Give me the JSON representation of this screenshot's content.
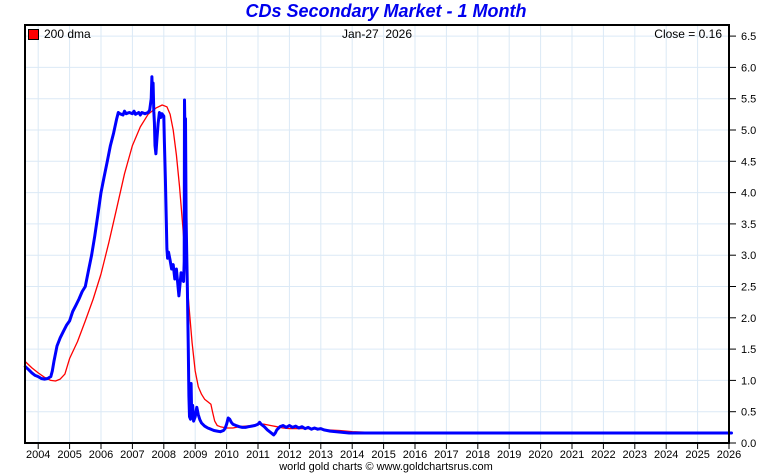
{
  "header": {
    "title": "CDs Secondary Market - 1 Month",
    "date_label": "Jan-27  2026",
    "close_label": "Close = 0.16"
  },
  "legend": {
    "items": [
      {
        "label": "200 dma",
        "color": "#ff0000"
      }
    ]
  },
  "footer": {
    "credit": "world gold charts © www.goldchartsrus.com"
  },
  "colors": {
    "title": "#0000ee",
    "grid": "#dbe9f6",
    "border": "#000000",
    "main_series": "#0000ff",
    "dma_series": "#ff0000"
  },
  "chart_data": {
    "type": "line",
    "title": "CDs Secondary Market - 1 Month",
    "xlabel": "",
    "ylabel": "",
    "grid": true,
    "legend_position": "top-left",
    "close": 0.16,
    "x_axis": {
      "range": [
        2003.59,
        2026.08
      ],
      "ticks": [
        2004,
        2005,
        2006,
        2007,
        2008,
        2009,
        2010,
        2011,
        2012,
        2013,
        2014,
        2015,
        2016,
        2017,
        2018,
        2019,
        2020,
        2021,
        2022,
        2023,
        2024,
        2025,
        2026
      ]
    },
    "y_axis": {
      "range": [
        0.0,
        6.5
      ],
      "side": "right",
      "ticks": [
        0.0,
        0.5,
        1.0,
        1.5,
        2.0,
        2.5,
        3.0,
        3.5,
        4.0,
        4.5,
        5.0,
        5.5,
        6.0,
        6.5
      ]
    },
    "series": [
      {
        "name": "200 dma",
        "color": "#ff0000",
        "width": 1.3,
        "points": [
          [
            2003.59,
            1.3
          ],
          [
            2003.8,
            1.2
          ],
          [
            2004.0,
            1.12
          ],
          [
            2004.2,
            1.05
          ],
          [
            2004.4,
            1.0
          ],
          [
            2004.55,
            0.99
          ],
          [
            2004.7,
            1.02
          ],
          [
            2004.85,
            1.1
          ],
          [
            2005.0,
            1.35
          ],
          [
            2005.25,
            1.62
          ],
          [
            2005.5,
            1.95
          ],
          [
            2005.75,
            2.3
          ],
          [
            2006.0,
            2.7
          ],
          [
            2006.25,
            3.2
          ],
          [
            2006.5,
            3.75
          ],
          [
            2006.75,
            4.3
          ],
          [
            2007.0,
            4.75
          ],
          [
            2007.25,
            5.05
          ],
          [
            2007.5,
            5.25
          ],
          [
            2007.75,
            5.35
          ],
          [
            2007.95,
            5.4
          ],
          [
            2008.1,
            5.37
          ],
          [
            2008.2,
            5.25
          ],
          [
            2008.3,
            5.0
          ],
          [
            2008.4,
            4.6
          ],
          [
            2008.5,
            4.1
          ],
          [
            2008.6,
            3.5
          ],
          [
            2008.7,
            2.85
          ],
          [
            2008.8,
            2.2
          ],
          [
            2008.9,
            1.6
          ],
          [
            2009.0,
            1.15
          ],
          [
            2009.1,
            0.9
          ],
          [
            2009.2,
            0.78
          ],
          [
            2009.3,
            0.7
          ],
          [
            2009.4,
            0.66
          ],
          [
            2009.5,
            0.62
          ],
          [
            2009.55,
            0.5
          ],
          [
            2009.62,
            0.35
          ],
          [
            2009.7,
            0.28
          ],
          [
            2009.8,
            0.26
          ],
          [
            2010.0,
            0.24
          ],
          [
            2010.2,
            0.24
          ],
          [
            2010.4,
            0.26
          ],
          [
            2010.6,
            0.27
          ],
          [
            2010.8,
            0.28
          ],
          [
            2011.0,
            0.3
          ],
          [
            2011.2,
            0.3
          ],
          [
            2011.4,
            0.28
          ],
          [
            2011.6,
            0.26
          ],
          [
            2011.8,
            0.24
          ],
          [
            2012.0,
            0.23
          ],
          [
            2012.3,
            0.23
          ],
          [
            2012.6,
            0.23
          ],
          [
            2012.9,
            0.22
          ],
          [
            2013.2,
            0.21
          ],
          [
            2013.6,
            0.2
          ],
          [
            2014.0,
            0.18
          ],
          [
            2014.6,
            0.17
          ],
          [
            2015.4,
            0.17
          ],
          [
            2016.0,
            0.16
          ],
          [
            2026.08,
            0.16
          ]
        ]
      },
      {
        "name": "CDs 1 Month",
        "color": "#0000ff",
        "width": 3,
        "points": [
          [
            2003.59,
            1.22
          ],
          [
            2003.7,
            1.17
          ],
          [
            2003.8,
            1.12
          ],
          [
            2003.9,
            1.08
          ],
          [
            2004.0,
            1.06
          ],
          [
            2004.1,
            1.03
          ],
          [
            2004.2,
            1.02
          ],
          [
            2004.3,
            1.03
          ],
          [
            2004.4,
            1.06
          ],
          [
            2004.45,
            1.15
          ],
          [
            2004.5,
            1.3
          ],
          [
            2004.6,
            1.55
          ],
          [
            2004.7,
            1.68
          ],
          [
            2004.8,
            1.78
          ],
          [
            2004.9,
            1.88
          ],
          [
            2005.0,
            1.95
          ],
          [
            2005.1,
            2.1
          ],
          [
            2005.2,
            2.2
          ],
          [
            2005.3,
            2.3
          ],
          [
            2005.4,
            2.42
          ],
          [
            2005.5,
            2.5
          ],
          [
            2005.6,
            2.75
          ],
          [
            2005.7,
            3.0
          ],
          [
            2005.8,
            3.3
          ],
          [
            2005.9,
            3.65
          ],
          [
            2006.0,
            4.0
          ],
          [
            2006.1,
            4.25
          ],
          [
            2006.2,
            4.5
          ],
          [
            2006.3,
            4.75
          ],
          [
            2006.4,
            4.95
          ],
          [
            2006.5,
            5.18
          ],
          [
            2006.55,
            5.28
          ],
          [
            2006.6,
            5.26
          ],
          [
            2006.7,
            5.24
          ],
          [
            2006.75,
            5.3
          ],
          [
            2006.8,
            5.26
          ],
          [
            2006.9,
            5.28
          ],
          [
            2007.0,
            5.26
          ],
          [
            2007.05,
            5.3
          ],
          [
            2007.1,
            5.25
          ],
          [
            2007.2,
            5.28
          ],
          [
            2007.25,
            5.24
          ],
          [
            2007.3,
            5.28
          ],
          [
            2007.4,
            5.26
          ],
          [
            2007.5,
            5.28
          ],
          [
            2007.55,
            5.32
          ],
          [
            2007.6,
            5.5
          ],
          [
            2007.62,
            5.85
          ],
          [
            2007.64,
            5.55
          ],
          [
            2007.66,
            5.75
          ],
          [
            2007.68,
            5.3
          ],
          [
            2007.7,
            5.12
          ],
          [
            2007.72,
            4.75
          ],
          [
            2007.75,
            4.62
          ],
          [
            2007.78,
            4.85
          ],
          [
            2007.82,
            5.1
          ],
          [
            2007.86,
            5.28
          ],
          [
            2007.9,
            5.2
          ],
          [
            2007.94,
            5.26
          ],
          [
            2008.0,
            5.22
          ],
          [
            2008.02,
            4.8
          ],
          [
            2008.05,
            4.2
          ],
          [
            2008.08,
            3.55
          ],
          [
            2008.1,
            3.1
          ],
          [
            2008.12,
            2.95
          ],
          [
            2008.15,
            3.05
          ],
          [
            2008.2,
            2.92
          ],
          [
            2008.25,
            2.78
          ],
          [
            2008.3,
            2.85
          ],
          [
            2008.35,
            2.62
          ],
          [
            2008.4,
            2.78
          ],
          [
            2008.45,
            2.52
          ],
          [
            2008.48,
            2.35
          ],
          [
            2008.52,
            2.55
          ],
          [
            2008.55,
            2.72
          ],
          [
            2008.58,
            2.6
          ],
          [
            2008.6,
            2.65
          ],
          [
            2008.63,
            2.58
          ],
          [
            2008.65,
            2.9
          ],
          [
            2008.66,
            5.48
          ],
          [
            2008.68,
            4.7
          ],
          [
            2008.69,
            5.18
          ],
          [
            2008.71,
            3.6
          ],
          [
            2008.73,
            3.05
          ],
          [
            2008.75,
            2.45
          ],
          [
            2008.78,
            1.5
          ],
          [
            2008.8,
            0.75
          ],
          [
            2008.82,
            0.42
          ],
          [
            2008.85,
            0.38
          ],
          [
            2008.87,
            0.95
          ],
          [
            2008.89,
            0.42
          ],
          [
            2008.92,
            0.6
          ],
          [
            2008.95,
            0.35
          ],
          [
            2009.0,
            0.42
          ],
          [
            2009.05,
            0.57
          ],
          [
            2009.1,
            0.45
          ],
          [
            2009.15,
            0.37
          ],
          [
            2009.2,
            0.32
          ],
          [
            2009.3,
            0.27
          ],
          [
            2009.4,
            0.24
          ],
          [
            2009.5,
            0.22
          ],
          [
            2009.6,
            0.2
          ],
          [
            2009.7,
            0.19
          ],
          [
            2009.8,
            0.18
          ],
          [
            2009.9,
            0.2
          ],
          [
            2009.95,
            0.23
          ],
          [
            2010.0,
            0.3
          ],
          [
            2010.05,
            0.4
          ],
          [
            2010.1,
            0.38
          ],
          [
            2010.15,
            0.33
          ],
          [
            2010.2,
            0.3
          ],
          [
            2010.3,
            0.28
          ],
          [
            2010.4,
            0.26
          ],
          [
            2010.5,
            0.25
          ],
          [
            2010.6,
            0.25
          ],
          [
            2010.7,
            0.26
          ],
          [
            2010.8,
            0.27
          ],
          [
            2010.9,
            0.28
          ],
          [
            2011.0,
            0.3
          ],
          [
            2011.05,
            0.33
          ],
          [
            2011.1,
            0.3
          ],
          [
            2011.2,
            0.26
          ],
          [
            2011.3,
            0.21
          ],
          [
            2011.4,
            0.17
          ],
          [
            2011.5,
            0.13
          ],
          [
            2011.55,
            0.16
          ],
          [
            2011.6,
            0.21
          ],
          [
            2011.7,
            0.26
          ],
          [
            2011.8,
            0.28
          ],
          [
            2011.9,
            0.25
          ],
          [
            2012.0,
            0.28
          ],
          [
            2012.1,
            0.25
          ],
          [
            2012.2,
            0.27
          ],
          [
            2012.3,
            0.24
          ],
          [
            2012.4,
            0.26
          ],
          [
            2012.5,
            0.23
          ],
          [
            2012.6,
            0.25
          ],
          [
            2012.7,
            0.22
          ],
          [
            2012.8,
            0.24
          ],
          [
            2012.9,
            0.22
          ],
          [
            2013.0,
            0.23
          ],
          [
            2013.1,
            0.21
          ],
          [
            2013.2,
            0.2
          ],
          [
            2013.3,
            0.19
          ],
          [
            2013.5,
            0.18
          ],
          [
            2013.7,
            0.17
          ],
          [
            2013.9,
            0.16
          ],
          [
            2026.08,
            0.16
          ]
        ]
      }
    ]
  }
}
